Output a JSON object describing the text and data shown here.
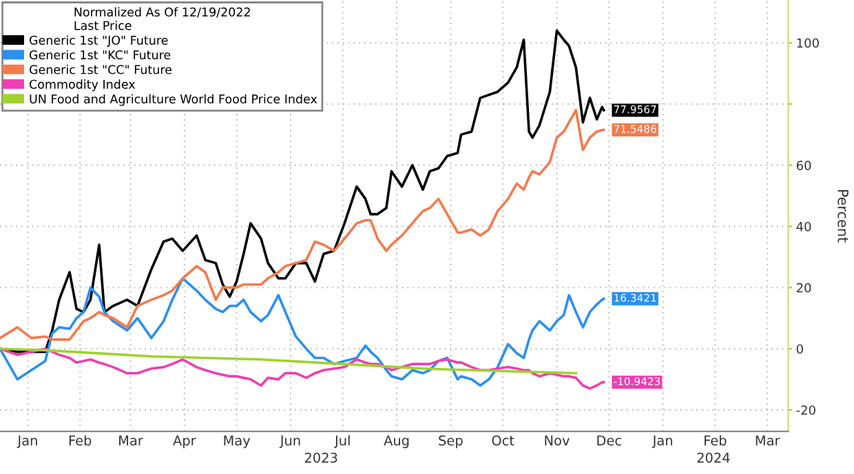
{
  "chart_data": {
    "type": "line",
    "legend_title": "Normalized As Of 12/19/2022\nLast Price",
    "ylabel": "Percent",
    "annotations": [
      "2023",
      "2024"
    ],
    "x": [
      "2022-12-30",
      "2023-01-09",
      "2023-01-17",
      "2023-01-25",
      "2023-01-29",
      "2023-02-02",
      "2023-02-08",
      "2023-02-12",
      "2023-02-16",
      "2023-02-20",
      "2023-02-25",
      "2023-02-28",
      "2023-03-05",
      "2023-03-13",
      "2023-03-19",
      "2023-03-27",
      "2023-04-03",
      "2023-04-08",
      "2023-04-14",
      "2023-04-22",
      "2023-04-27",
      "2023-05-03",
      "2023-05-07",
      "2023-05-11",
      "2023-05-15",
      "2023-05-19",
      "2023-05-23",
      "2023-05-29",
      "2023-06-02",
      "2023-06-08",
      "2023-06-12",
      "2023-06-18",
      "2023-06-24",
      "2023-06-29",
      "2023-07-04",
      "2023-07-10",
      "2023-07-16",
      "2023-07-23",
      "2023-07-28",
      "2023-07-31",
      "2023-08-04",
      "2023-08-09",
      "2023-08-12",
      "2023-08-18",
      "2023-08-24",
      "2023-08-30",
      "2023-09-03",
      "2023-09-08",
      "2023-09-13",
      "2023-09-19",
      "2023-09-21",
      "2023-09-27",
      "2023-10-02",
      "2023-10-07",
      "2023-10-12",
      "2023-10-18",
      "2023-10-23",
      "2023-10-27",
      "2023-10-30",
      "2023-11-01",
      "2023-11-05",
      "2023-11-11",
      "2023-11-15",
      "2023-11-19",
      "2023-11-22",
      "2023-11-26",
      "2023-11-30",
      "2023-12-04",
      "2023-12-08",
      "2023-12-11",
      "2023-12-12"
    ],
    "series": [
      {
        "name": "Generic 1st \"JO\" Future",
        "color": "#000000",
        "values": [
          0,
          -1,
          -1,
          -1,
          6,
          16,
          25,
          13,
          12,
          16,
          34,
          12,
          14,
          16,
          14,
          26,
          35,
          36,
          32,
          37,
          29,
          28,
          21,
          17,
          22,
          31,
          41,
          36,
          28,
          23,
          23,
          28,
          28,
          22,
          31,
          32,
          41,
          53,
          49,
          44,
          44,
          46,
          58,
          53,
          60,
          52,
          58,
          59,
          63,
          64,
          70,
          71,
          82,
          83,
          84,
          87,
          92,
          101,
          71,
          69,
          73,
          84,
          104,
          101,
          99,
          92,
          74,
          82,
          75,
          79,
          77.9567
        ],
        "value_labels": [
          null,
          null,
          null,
          null,
          null,
          null,
          null,
          null,
          null,
          null,
          null,
          null,
          null,
          null,
          null,
          null,
          null,
          null,
          null,
          null,
          null,
          null,
          null,
          null,
          null,
          null,
          null,
          null,
          null,
          null,
          null,
          null,
          null,
          null,
          null,
          null,
          null,
          null,
          null,
          null,
          null,
          null,
          null,
          null,
          null,
          null,
          null,
          null,
          null,
          null,
          null,
          null,
          null,
          null,
          null,
          null,
          null,
          null,
          null,
          null,
          null,
          null,
          null,
          null,
          null,
          null,
          null,
          null,
          null,
          null,
          "77.9567"
        ]
      },
      {
        "name": "Generic 1st \"KC\" Future",
        "color": "#2b8ff0",
        "values": [
          0,
          -10,
          -7,
          -4,
          5,
          7,
          6.5,
          10,
          12,
          20,
          17,
          12,
          9,
          6,
          10,
          3.5,
          9,
          16,
          23,
          19,
          16,
          13,
          12,
          14,
          14,
          16,
          12,
          9,
          11,
          17.5,
          12,
          4,
          0,
          -3,
          -3,
          -5,
          -4,
          -3,
          1,
          -1,
          -3,
          -7,
          -9,
          -10,
          -7,
          -8,
          -7,
          -4,
          -3,
          -10,
          -9,
          -10,
          -12,
          -10,
          -6,
          1.5,
          -1.5,
          -3,
          3,
          6,
          9,
          6,
          9,
          11,
          17.5,
          12,
          7,
          12,
          14.5,
          16,
          16.3421
        ],
        "value_labels": [
          null,
          null,
          null,
          null,
          null,
          null,
          null,
          null,
          null,
          null,
          null,
          null,
          null,
          null,
          null,
          null,
          null,
          null,
          null,
          null,
          null,
          null,
          null,
          null,
          null,
          null,
          null,
          null,
          null,
          null,
          null,
          null,
          null,
          null,
          null,
          null,
          null,
          null,
          null,
          null,
          null,
          null,
          null,
          null,
          null,
          null,
          null,
          null,
          null,
          null,
          null,
          null,
          null,
          null,
          null,
          null,
          null,
          null,
          null,
          null,
          null,
          null,
          null,
          null,
          null,
          null,
          null,
          null,
          null,
          null,
          "16.3421"
        ]
      },
      {
        "name": "Generic 1st \"CC\" Future",
        "color": "#f47a4c",
        "values": [
          3.5,
          7,
          3.5,
          4,
          3,
          3,
          3,
          6,
          9,
          10,
          12,
          11,
          10,
          7,
          14,
          16,
          17.5,
          19,
          23,
          27,
          25,
          16,
          20,
          20,
          20,
          21,
          21,
          21,
          23,
          25,
          27,
          28,
          29,
          35,
          34,
          32,
          36,
          41,
          42,
          42,
          36,
          32,
          34,
          37,
          41,
          45,
          46,
          49,
          44,
          38,
          38,
          39,
          37,
          39,
          45,
          49,
          54,
          52,
          56,
          58,
          57,
          61,
          69,
          71,
          74,
          78,
          65,
          69,
          71,
          71.5,
          71.5486
        ],
        "value_labels": [
          null,
          null,
          null,
          null,
          null,
          null,
          null,
          null,
          null,
          null,
          null,
          null,
          null,
          null,
          null,
          null,
          null,
          null,
          null,
          null,
          null,
          null,
          null,
          null,
          null,
          null,
          null,
          null,
          null,
          null,
          null,
          null,
          null,
          null,
          null,
          null,
          null,
          null,
          null,
          null,
          null,
          null,
          null,
          null,
          null,
          null,
          null,
          null,
          null,
          null,
          null,
          null,
          null,
          null,
          null,
          null,
          null,
          null,
          null,
          null,
          null,
          null,
          null,
          null,
          null,
          null,
          null,
          null,
          null,
          null,
          "71.5486"
        ]
      },
      {
        "name": "Commodity Index",
        "color": "#ec3fb2",
        "values": [
          0,
          -2,
          -1,
          0,
          -1,
          -2,
          -3,
          -4.5,
          -4,
          -3.5,
          -4.5,
          -5,
          -6,
          -8,
          -8,
          -6.5,
          -6,
          -5,
          -3.5,
          -6,
          -7,
          -8,
          -8.5,
          -9,
          -9,
          -9.5,
          -10,
          -12,
          -9.5,
          -10,
          -8,
          -8,
          -9.5,
          -8,
          -7,
          -6.5,
          -6,
          -3.5,
          -4.5,
          -5,
          -5,
          -6,
          -7,
          -6,
          -5,
          -5,
          -5,
          -4,
          -3.5,
          -4.5,
          -4.5,
          -6,
          -7,
          -7,
          -6.5,
          -6,
          -6.5,
          -7,
          -7,
          -8,
          -9,
          -8,
          -8.5,
          -9,
          -9,
          -9.5,
          -12,
          -13,
          -12,
          -11,
          -10.9423
        ],
        "value_labels": [
          null,
          null,
          null,
          null,
          null,
          null,
          null,
          null,
          null,
          null,
          null,
          null,
          null,
          null,
          null,
          null,
          null,
          null,
          null,
          null,
          null,
          null,
          null,
          null,
          null,
          null,
          null,
          null,
          null,
          null,
          null,
          null,
          null,
          null,
          null,
          null,
          null,
          null,
          null,
          null,
          null,
          null,
          null,
          null,
          null,
          null,
          null,
          null,
          null,
          null,
          null,
          null,
          null,
          null,
          null,
          null,
          null,
          null,
          null,
          null,
          null,
          null,
          null,
          null,
          null,
          null,
          null,
          null,
          null,
          null,
          "-10.9423"
        ]
      },
      {
        "name": "UN Food and Agriculture World Food Price Index",
        "color": "#9fd22c",
        "x": [
          "2022-12-30",
          "2023-01-25",
          "2023-02-25",
          "2023-03-27",
          "2023-04-27",
          "2023-05-29",
          "2023-06-29",
          "2023-07-31",
          "2023-08-30",
          "2023-09-27",
          "2023-10-27",
          "2023-11-26"
        ],
        "values": [
          0,
          -0.5,
          -1.5,
          -2.5,
          -3,
          -3.5,
          -4.5,
          -5.5,
          -6.5,
          -7,
          -7.5,
          -8
        ]
      }
    ],
    "xlim": [
      "2022-12-30",
      "2024-03-27"
    ],
    "xticks": [
      {
        "value": "2023-01-15",
        "label": "Jan"
      },
      {
        "value": "2023-02-14",
        "label": "Feb"
      },
      {
        "value": "2023-03-15",
        "label": "Mar"
      },
      {
        "value": "2023-04-15",
        "label": "Apr"
      },
      {
        "value": "2023-05-15",
        "label": "May"
      },
      {
        "value": "2023-06-15",
        "label": "Jun"
      },
      {
        "value": "2023-07-15",
        "label": "Jul"
      },
      {
        "value": "2023-08-15",
        "label": "Aug"
      },
      {
        "value": "2023-09-15",
        "label": "Sep"
      },
      {
        "value": "2023-10-15",
        "label": "Oct"
      },
      {
        "value": "2023-11-15",
        "label": "Nov"
      },
      {
        "value": "2023-12-15",
        "label": "Dec"
      },
      {
        "value": "2024-01-15",
        "label": "Jan"
      },
      {
        "value": "2024-02-14",
        "label": "Feb"
      },
      {
        "value": "2024-03-15",
        "label": "Mar"
      }
    ],
    "ylim": [
      -27,
      114
    ],
    "yticks": [
      -20,
      0,
      20,
      40,
      60,
      {
        "value": 80,
        "label": null
      },
      100
    ],
    "grid": true,
    "legend": "top left",
    "marker": "none",
    "line_style": "solid"
  }
}
